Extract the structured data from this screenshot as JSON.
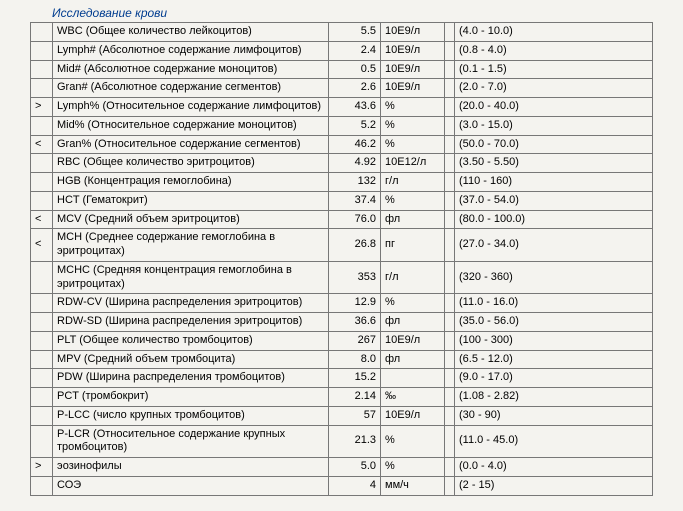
{
  "title": "Исследование крови",
  "rows": [
    {
      "flag": "",
      "param": "WBC (Общее количество лейкоцитов)",
      "value": "5.5",
      "unit": "10E9/л",
      "ref": "(4.0 - 10.0)"
    },
    {
      "flag": "",
      "param": "Lymph# (Абсолютное содержание лимфоцитов)",
      "value": "2.4",
      "unit": "10E9/л",
      "ref": "(0.8 - 4.0)"
    },
    {
      "flag": "",
      "param": "Mid# (Абсолютное содержание моноцитов)",
      "value": "0.5",
      "unit": "10E9/л",
      "ref": "(0.1 - 1.5)"
    },
    {
      "flag": "",
      "param": "Gran# (Абсолютное содержание сегментов)",
      "value": "2.6",
      "unit": "10E9/л",
      "ref": "(2.0 - 7.0)"
    },
    {
      "flag": ">",
      "param": "Lymph% (Относительное содержание лимфоцитов)",
      "value": "43.6",
      "unit": "%",
      "ref": "(20.0 - 40.0)"
    },
    {
      "flag": "",
      "param": "Mid% (Относительное содержание моноцитов)",
      "value": "5.2",
      "unit": "%",
      "ref": "(3.0 - 15.0)"
    },
    {
      "flag": "<",
      "param": "Gran% (Относительное содержание сегментов)",
      "value": "46.2",
      "unit": "%",
      "ref": "(50.0 - 70.0)"
    },
    {
      "flag": "",
      "param": "RBC (Общее количество эритроцитов)",
      "value": "4.92",
      "unit": "10E12/л",
      "ref": "(3.50 - 5.50)"
    },
    {
      "flag": "",
      "param": "HGB (Концентрация гемоглобина)",
      "value": "132",
      "unit": "г/л",
      "ref": "(110 - 160)"
    },
    {
      "flag": "",
      "param": "HCT (Гематокрит)",
      "value": "37.4",
      "unit": "%",
      "ref": "(37.0 - 54.0)"
    },
    {
      "flag": "<",
      "param": "MCV (Средний объем эритроцитов)",
      "value": "76.0",
      "unit": "фл",
      "ref": "(80.0 - 100.0)"
    },
    {
      "flag": "<",
      "param": "MCH (Среднее содержание гемоглобина в эритроцитах)",
      "value": "26.8",
      "unit": "пг",
      "ref": "(27.0 - 34.0)"
    },
    {
      "flag": "",
      "param": "MCHC (Средняя концентрация гемоглобина в эритроцитах)",
      "value": "353",
      "unit": "г/л",
      "ref": "(320 - 360)"
    },
    {
      "flag": "",
      "param": "RDW-CV (Ширина распределения эритроцитов)",
      "value": "12.9",
      "unit": "%",
      "ref": "(11.0 - 16.0)"
    },
    {
      "flag": "",
      "param": "RDW-SD (Ширина распределения эритроцитов)",
      "value": "36.6",
      "unit": "фл",
      "ref": "(35.0 - 56.0)"
    },
    {
      "flag": "",
      "param": "PLT (Общее количество тромбоцитов)",
      "value": "267",
      "unit": "10E9/л",
      "ref": "(100 - 300)"
    },
    {
      "flag": "",
      "param": "MPV (Средний объем тромбоцита)",
      "value": "8.0",
      "unit": "фл",
      "ref": "(6.5 - 12.0)"
    },
    {
      "flag": "",
      "param": "PDW (Ширина распределения тромбоцитов)",
      "value": "15.2",
      "unit": "",
      "ref": "(9.0 - 17.0)"
    },
    {
      "flag": "",
      "param": "PCT (тромбокрит)",
      "value": "2.14",
      "unit": "‰",
      "ref": "(1.08 - 2.82)"
    },
    {
      "flag": "",
      "param": "P-LCC (число крупных тромбоцитов)",
      "value": "57",
      "unit": "10E9/л",
      "ref": "(30 - 90)"
    },
    {
      "flag": "",
      "param": "P-LCR (Относительное содержание крупных тромбоцитов)",
      "value": "21.3",
      "unit": "%",
      "ref": "(11.0 - 45.0)"
    },
    {
      "flag": ">",
      "param": "эозинофилы",
      "value": "5.0",
      "unit": "%",
      "ref": "(0.0 - 4.0)"
    },
    {
      "flag": "",
      "param": "СОЭ",
      "value": "4",
      "unit": "мм/ч",
      "ref": "(2 - 15)"
    }
  ]
}
